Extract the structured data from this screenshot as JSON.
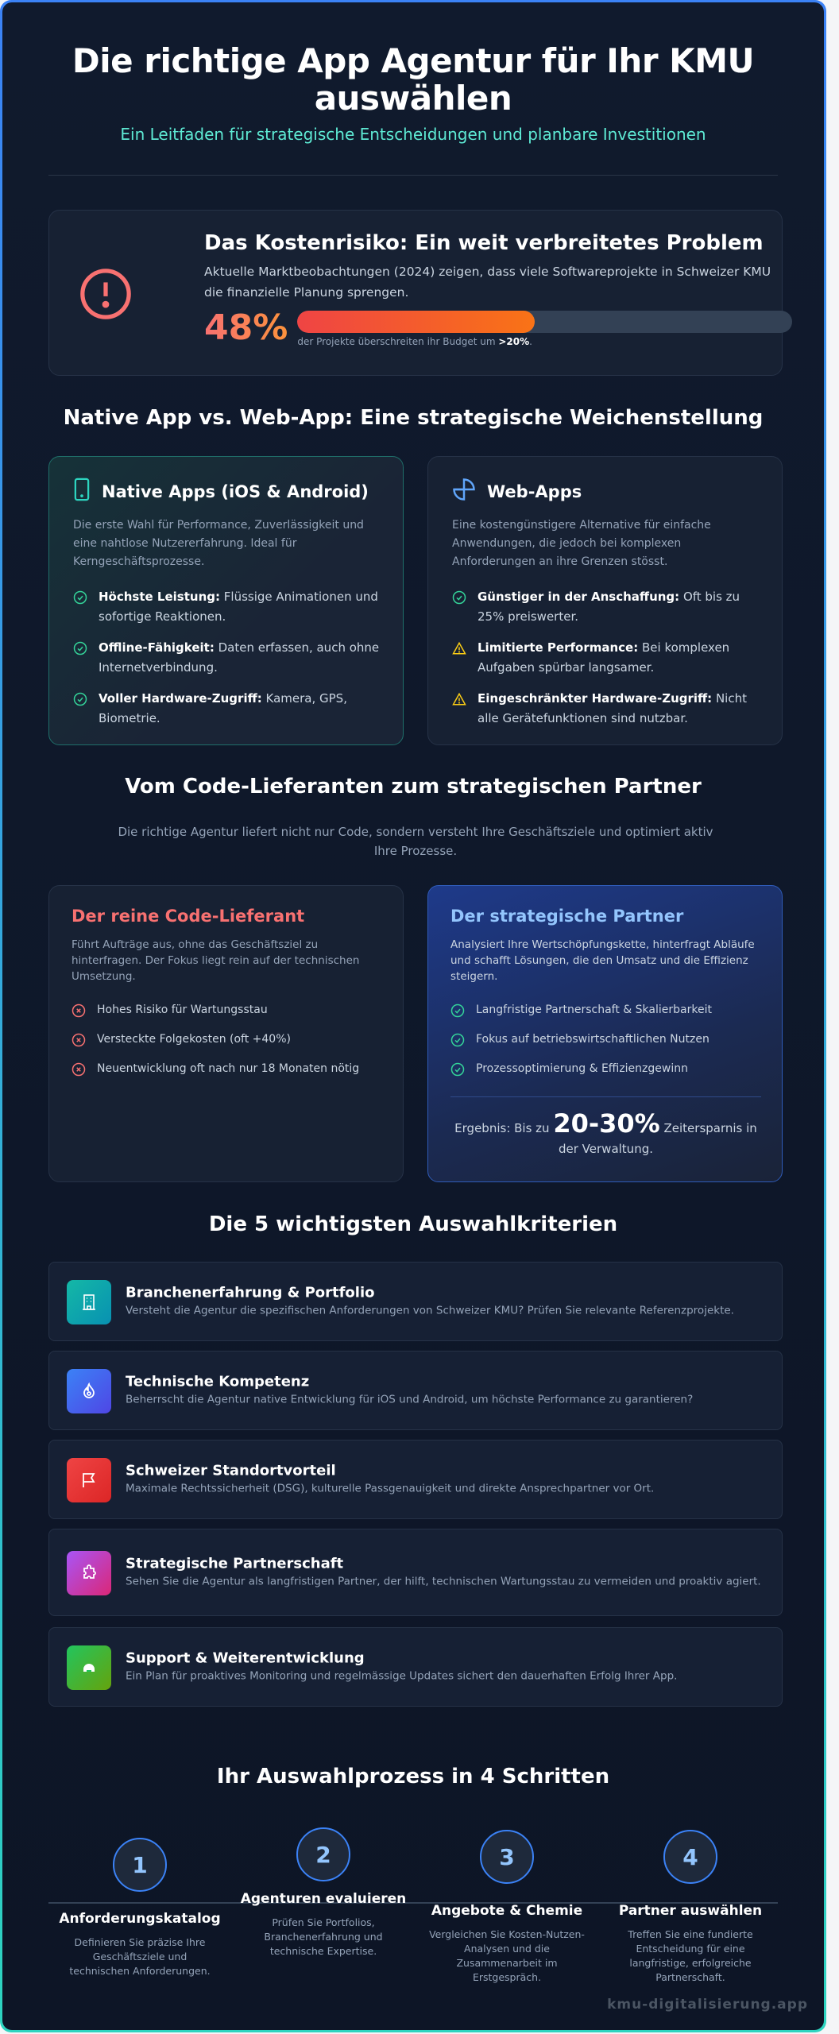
{
  "header": {
    "title": "Die richtige App Agentur für Ihr KMU auswählen",
    "subtitle": "Ein Leitfaden für strategische Entscheidungen und planbare Investitionen"
  },
  "cost": {
    "title": "Das Kostenrisiko: Ein weit verbreitetes Problem",
    "text": "Aktuelle Marktbeobachtungen (2024) zeigen, dass viele Softwareprojekte in Schweizer KMU die finanzielle Planung sprengen.",
    "value": "48%",
    "progress_percent": 48,
    "caption": "der Projekte überschreiten ihr Budget um ",
    "caption_strong": ">20%",
    "caption_end": "."
  },
  "compare": {
    "heading": "Native App vs. Web-App: Eine strategische Weichenstellung",
    "native": {
      "title": "Native Apps (iOS & Android)",
      "desc": "Die erste Wahl für Performance, Zuverlässigkeit und eine nahtlose Nutzererfahrung. Ideal für Kerngeschäftsprozesse.",
      "items": [
        {
          "strong": "Höchste Leistung:",
          "text": " Flüssige Animationen und sofortige Reaktionen."
        },
        {
          "strong": "Offline-Fähigkeit:",
          "text": " Daten erfassen, auch ohne Internetverbindung."
        },
        {
          "strong": "Voller Hardware-Zugriff:",
          "text": " Kamera, GPS, Biometrie."
        }
      ]
    },
    "web": {
      "title": "Web-Apps",
      "desc": "Eine kostengünstigere Alternative für einfache Anwendungen, die jedoch bei komplexen Anforderungen an ihre Grenzen stösst.",
      "items": [
        {
          "strong": "Günstiger in der Anschaffung:",
          "text": " Oft bis zu 25% preiswerter."
        },
        {
          "strong": "Limitierte Performance:",
          "text": " Bei komplexen Aufgaben spürbar langsamer."
        },
        {
          "strong": "Eingeschränkter Hardware-Zugriff:",
          "text": " Nicht alle Gerätefunktionen sind nutzbar."
        }
      ]
    }
  },
  "partner": {
    "heading": "Vom Code-Lieferanten zum strategischen Partner",
    "subtitle": "Die richtige Agentur liefert nicht nur Code, sondern versteht Ihre Geschäftsziele und optimiert aktiv Ihre Prozesse.",
    "supplier": {
      "title": "Der reine Code-Lieferant",
      "desc": "Führt Aufträge aus, ohne das Geschäftsziel zu hinterfragen. Der Fokus liegt rein auf der technischen Umsetzung.",
      "items": [
        "Hohes Risiko für Wartungsstau",
        "Versteckte Folgekosten (oft +40%)",
        "Neuentwicklung oft nach nur 18 Monaten nötig"
      ]
    },
    "strategic": {
      "title": "Der strategische Partner",
      "desc": "Analysiert Ihre Wertschöpfungskette, hinterfragt Abläufe und schafft Lösungen, die den Umsatz und die Effizienz steigern.",
      "items": [
        "Langfristige Partnerschaft & Skalierbarkeit",
        "Fokus auf betriebswirtschaftlichen Nutzen",
        "Prozessoptimierung & Effizienzgewinn"
      ],
      "result_prefix": "Ergebnis: Bis zu ",
      "result_value": "20-30%",
      "result_suffix": " Zeitersparnis in der Verwaltung."
    }
  },
  "criteria": {
    "heading": "Die 5 wichtigsten Auswahlkriterien",
    "items": [
      {
        "title": "Branchenerfahrung & Portfolio",
        "desc": "Versteht die Agentur die spezifischen Anforderungen von Schweizer KMU? Prüfen Sie relevante Referenzprojekte.",
        "icon": "building-icon",
        "color": "#14b8a6"
      },
      {
        "title": "Technische Kompetenz",
        "desc": "Beherrscht die Agentur native Entwicklung für iOS und Android, um höchste Performance zu garantieren?",
        "icon": "flame-icon",
        "color": "#3b82f6"
      },
      {
        "title": "Schweizer Standortvorteil",
        "desc": "Maximale Rechtssicherheit (DSG), kulturelle Passgenauigkeit und direkte Ansprechpartner vor Ort.",
        "icon": "flag-icon",
        "color": "#ef4444"
      },
      {
        "title": "Strategische Partnerschaft",
        "desc": "Sehen Sie die Agentur als langfristigen Partner, der hilft, technischen Wartungsstau zu vermeiden und proaktiv agiert.",
        "icon": "puzzle-icon",
        "color": "#c026d3"
      },
      {
        "title": "Support & Weiterentwicklung",
        "desc": "Ein Plan für proaktives Monitoring und regelmässige Updates sichert den dauerhaften Erfolg Ihrer App.",
        "icon": "support-icon",
        "color": "#22c55e"
      }
    ]
  },
  "process": {
    "heading": "Ihr Auswahlprozess in 4 Schritten",
    "steps": [
      {
        "num": "1",
        "title": "Anforderungskatalog",
        "desc": "Definieren Sie präzise Ihre Geschäftsziele und technischen Anforderungen."
      },
      {
        "num": "2",
        "title": "Agenturen evaluieren",
        "desc": "Prüfen Sie Portfolios, Branchenerfahrung und technische Expertise."
      },
      {
        "num": "3",
        "title": "Angebote & Chemie",
        "desc": "Vergleichen Sie Kosten-Nutzen-Analysen und die Zusammenarbeit im Erstgespräch."
      },
      {
        "num": "4",
        "title": "Partner auswählen",
        "desc": "Treffen Sie eine fundierte Entscheidung für eine langfristige, erfolgreiche Partnerschaft."
      }
    ]
  },
  "footer": {
    "brand": "kmu-digitalisierung.app"
  }
}
